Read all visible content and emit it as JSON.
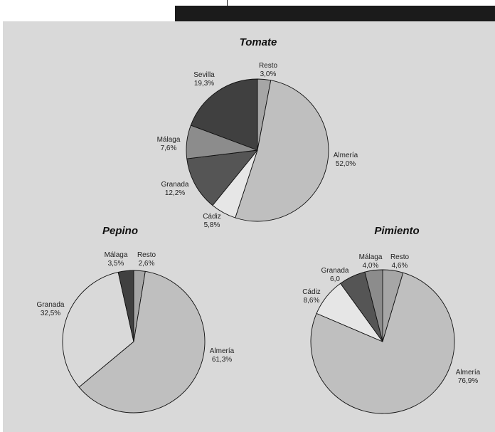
{
  "chart_data": [
    {
      "type": "pie",
      "title": "Tomate",
      "slices": [
        {
          "label": "Resto",
          "display": "3,0%",
          "value": 3.0,
          "color": "#a6a6a6"
        },
        {
          "label": "Almería",
          "display": "52,0%",
          "value": 52.0,
          "color": "#bfbfbf"
        },
        {
          "label": "Cádiz",
          "display": "5,8%",
          "value": 5.8,
          "color": "#e6e6e6"
        },
        {
          "label": "Granada",
          "display": "12,2%",
          "value": 12.2,
          "color": "#555555"
        },
        {
          "label": "Málaga",
          "display": "7,6%",
          "value": 7.6,
          "color": "#8c8c8c"
        },
        {
          "label": "Sevilla",
          "display": "19,3%",
          "value": 19.3,
          "color": "#404040"
        }
      ]
    },
    {
      "type": "pie",
      "title": "Pepino",
      "slices": [
        {
          "label": "Resto",
          "display": "2,6%",
          "value": 2.6,
          "color": "#a6a6a6"
        },
        {
          "label": "Almería",
          "display": "61,3%",
          "value": 61.3,
          "color": "#bfbfbf"
        },
        {
          "label": "Granada",
          "display": "32,5%",
          "value": 32.5,
          "color": "#d9d9d9"
        },
        {
          "label": "Málaga",
          "display": "3,5%",
          "value": 3.5,
          "color": "#404040"
        }
      ]
    },
    {
      "type": "pie",
      "title": "Pimiento",
      "slices": [
        {
          "label": "Resto",
          "display": "4,6%",
          "value": 4.6,
          "color": "#a6a6a6"
        },
        {
          "label": "Almería",
          "display": "76,9%",
          "value": 76.9,
          "color": "#bfbfbf"
        },
        {
          "label": "Cádiz",
          "display": "8,6%",
          "value": 8.6,
          "color": "#e6e6e6"
        },
        {
          "label": "Granada",
          "display": "6,0",
          "value": 6.0,
          "color": "#555555"
        },
        {
          "label": "Málaga",
          "display": "4,0%",
          "value": 4.0,
          "color": "#8c8c8c"
        }
      ]
    }
  ]
}
